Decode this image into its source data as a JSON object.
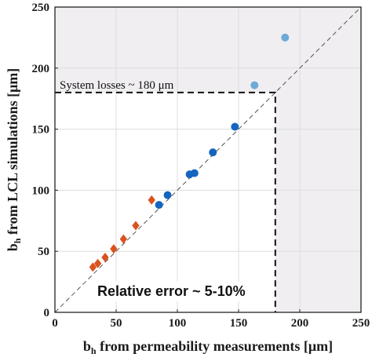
{
  "chart_data": {
    "type": "scatter",
    "xlabel_main": "b",
    "xlabel_sub": "h",
    "xlabel_rest": " from permeability measurements [μm]",
    "ylabel_main": "b",
    "ylabel_sub": "h",
    "ylabel_rest": " from LCL simulations [μm]",
    "xlim": [
      0,
      250
    ],
    "ylim": [
      0,
      250
    ],
    "xticks": [
      "0",
      "50",
      "100",
      "150",
      "200",
      "250"
    ],
    "yticks": [
      "0",
      "50",
      "100",
      "150",
      "200",
      "250"
    ],
    "grid": true,
    "legend": "none",
    "reference_line": {
      "style": "dashed",
      "from": [
        0,
        0
      ],
      "to": [
        250,
        250
      ],
      "color": "#555555"
    },
    "system_losses": {
      "value": 180,
      "label": "System losses ~ 180 μm",
      "shade_color": "#f0eef1"
    },
    "error_label": "Relative error ~ 5-10%",
    "series": [
      {
        "marker": "diamond",
        "color": "#d9531e",
        "points": [
          [
            31,
            37
          ],
          [
            35,
            40
          ],
          [
            41,
            45
          ],
          [
            48,
            52
          ],
          [
            56,
            60
          ],
          [
            66,
            71
          ],
          [
            79,
            92
          ]
        ]
      },
      {
        "marker": "circle",
        "color": "#1565c0",
        "points": [
          [
            85,
            88
          ],
          [
            92,
            96
          ],
          [
            110,
            113
          ],
          [
            114,
            114
          ],
          [
            129,
            131
          ],
          [
            147,
            152
          ]
        ]
      },
      {
        "marker": "circle",
        "color": "#6ea9d8",
        "points": [
          [
            163,
            186
          ],
          [
            188,
            225
          ]
        ]
      }
    ]
  }
}
